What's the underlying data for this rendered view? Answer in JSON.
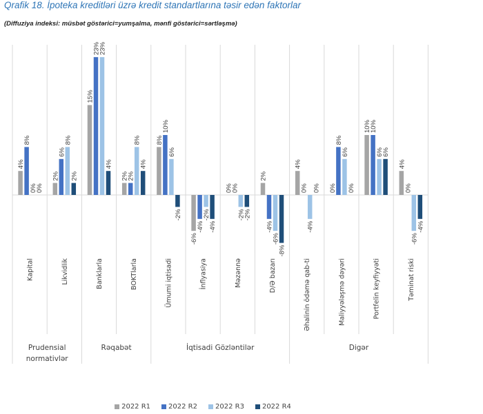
{
  "title": "Qrafik 18. İpoteka kreditləri üzrə kredit standartlarına təsir edən faktorlar",
  "subtitle": "(Diffuziya indeksi: müsbət göstərici=yumşalma, mənfi göstərici=sərtləşmə)",
  "chart_data": {
    "type": "bar",
    "title": "Qrafik 18. İpoteka kreditləri üzrə kredit standartlarına təsir edən faktorlar",
    "subtitle": "(Diffuziya indeksi: müsbət göstərici=yumşalma, mənfi göstərici=sərtləşmə)",
    "xlabel": "",
    "ylabel": "",
    "ylim": [
      -8,
      23
    ],
    "grid": "vertical category separators",
    "legend_position": "bottom",
    "value_format": "percent",
    "categories": [
      "Kapital",
      "Likvidlik",
      "Banklarla",
      "BOKTlarla",
      "Ümumi iqtisadi",
      "İnflyasiya",
      "Məzənnə",
      "D/Ə bazarı",
      "Əhalinin ödəmə qab-ti",
      "Maliyyələşmə dəyəri",
      "Portfelin keyfiyyəti",
      "Təminat riski"
    ],
    "groups": [
      {
        "label": "Prudensial normativlər",
        "categories": [
          "Kapital",
          "Likvidlik"
        ]
      },
      {
        "label": "Rəqabət",
        "categories": [
          "Banklarla",
          "BOKTlarla"
        ]
      },
      {
        "label": "İqtisadi Gözləntilər",
        "categories": [
          "Ümumi iqtisadi",
          "İnflyasiya",
          "Məzənnə",
          "D/Ə bazarı"
        ]
      },
      {
        "label": "Digər",
        "categories": [
          "Əhalinin ödəmə qab-ti",
          "Maliyyələşmə dəyəri",
          "Portfelin keyfiyyəti",
          "Təminat riski"
        ]
      }
    ],
    "series": [
      {
        "name": "2022 R1",
        "color": "#a5a5a5",
        "values": [
          4,
          2,
          15,
          2,
          8,
          -6,
          0,
          2,
          4,
          0,
          10,
          4
        ]
      },
      {
        "name": "2022 R2",
        "color": "#4472c4",
        "values": [
          8,
          6,
          23,
          2,
          10,
          -4,
          0,
          -4,
          0,
          8,
          10,
          0
        ]
      },
      {
        "name": "2022 R3",
        "color": "#9dc3e6",
        "values": [
          0,
          8,
          23,
          8,
          6,
          -2,
          -2,
          -6,
          -4,
          6,
          6,
          -6
        ]
      },
      {
        "name": "2022 R4",
        "color": "#1f4e79",
        "values": [
          0,
          2,
          4,
          4,
          -2,
          -4,
          -2,
          -8,
          0,
          0,
          6,
          -4
        ]
      }
    ]
  }
}
